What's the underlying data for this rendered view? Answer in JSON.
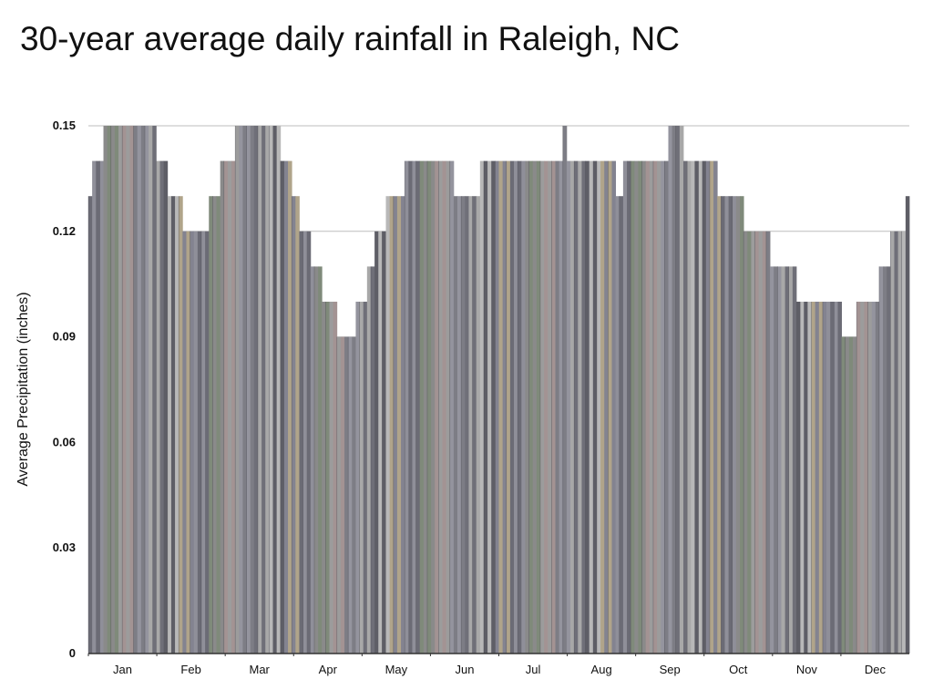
{
  "title": "30-year average daily rainfall in Raleigh, NC",
  "chart_data": {
    "type": "bar",
    "title": "30-year average daily rainfall in Raleigh, NC",
    "xlabel": "",
    "ylabel": "Average Precipitation (inches)",
    "ylim": [
      0,
      0.15
    ],
    "yticks": [
      "0",
      "0.03",
      "0.06",
      "0.09",
      "0.12",
      "0.15"
    ],
    "ytick_values": [
      0,
      0.03,
      0.06,
      0.09,
      0.12,
      0.15
    ],
    "grid": true,
    "months": [
      "Jan",
      "Feb",
      "Mar",
      "Apr",
      "May",
      "Jun",
      "Jul",
      "Aug",
      "Sep",
      "Oct",
      "Nov",
      "Dec"
    ],
    "values": [
      0.13,
      0.14,
      0.14,
      0.14,
      0.15,
      0.15,
      0.15,
      0.15,
      0.15,
      0.15,
      0.15,
      0.15,
      0.15,
      0.15,
      0.15,
      0.15,
      0.15,
      0.15,
      0.14,
      0.14,
      0.14,
      0.13,
      0.13,
      0.13,
      0.13,
      0.12,
      0.12,
      0.12,
      0.12,
      0.12,
      0.12,
      0.12,
      0.13,
      0.13,
      0.13,
      0.14,
      0.14,
      0.14,
      0.14,
      0.15,
      0.15,
      0.15,
      0.15,
      0.15,
      0.15,
      0.15,
      0.15,
      0.15,
      0.15,
      0.15,
      0.15,
      0.14,
      0.14,
      0.14,
      0.13,
      0.13,
      0.12,
      0.12,
      0.12,
      0.11,
      0.11,
      0.11,
      0.1,
      0.1,
      0.1,
      0.1,
      0.09,
      0.09,
      0.09,
      0.09,
      0.09,
      0.1,
      0.1,
      0.1,
      0.11,
      0.11,
      0.12,
      0.12,
      0.12,
      0.13,
      0.13,
      0.13,
      0.13,
      0.13,
      0.14,
      0.14,
      0.14,
      0.14,
      0.14,
      0.14,
      0.14,
      0.14,
      0.14,
      0.14,
      0.14,
      0.14,
      0.14,
      0.13,
      0.13,
      0.13,
      0.13,
      0.13,
      0.13,
      0.13,
      0.14,
      0.14,
      0.14,
      0.14,
      0.14,
      0.14,
      0.14,
      0.14,
      0.14,
      0.14,
      0.14,
      0.14,
      0.14,
      0.14,
      0.14,
      0.14,
      0.14,
      0.14,
      0.14,
      0.14,
      0.14,
      0.14,
      0.15,
      0.14,
      0.14,
      0.14,
      0.14,
      0.14,
      0.14,
      0.14,
      0.14,
      0.14,
      0.14,
      0.14,
      0.14,
      0.14,
      0.13,
      0.13,
      0.14,
      0.14,
      0.14,
      0.14,
      0.14,
      0.14,
      0.14,
      0.14,
      0.14,
      0.14,
      0.14,
      0.14,
      0.15,
      0.15,
      0.15,
      0.15,
      0.14,
      0.14,
      0.14,
      0.14,
      0.14,
      0.14,
      0.14,
      0.14,
      0.14,
      0.13,
      0.13,
      0.13,
      0.13,
      0.13,
      0.13,
      0.13,
      0.12,
      0.12,
      0.12,
      0.12,
      0.12,
      0.12,
      0.12,
      0.11,
      0.11,
      0.11,
      0.11,
      0.11,
      0.11,
      0.11,
      0.1,
      0.1,
      0.1,
      0.1,
      0.1,
      0.1,
      0.1,
      0.1,
      0.1,
      0.1,
      0.1,
      0.1,
      0.09,
      0.09,
      0.09,
      0.09,
      0.1,
      0.1,
      0.1,
      0.1,
      0.1,
      0.1,
      0.11,
      0.11,
      0.11,
      0.12,
      0.12,
      0.12,
      0.12,
      0.13
    ]
  }
}
